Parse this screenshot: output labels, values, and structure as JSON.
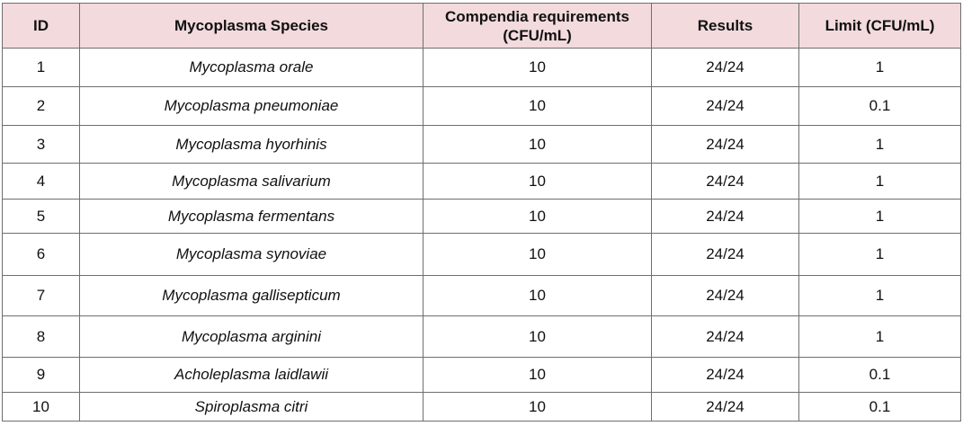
{
  "table": {
    "header": [
      "ID",
      "Mycoplasma Species",
      "Compendia requirements (CFU/mL)",
      "Results",
      "Limit (CFU/mL)"
    ],
    "rows": [
      [
        "1",
        "Mycoplasma orale",
        "10",
        "24/24",
        "1"
      ],
      [
        "2",
        "Mycoplasma pneumoniae",
        "10",
        "24/24",
        "0.1"
      ],
      [
        "3",
        "Mycoplasma hyorhinis",
        "10",
        "24/24",
        "1"
      ],
      [
        "4",
        "Mycoplasma salivarium",
        "10",
        "24/24",
        "1"
      ],
      [
        "5",
        "Mycoplasma fermentans",
        "10",
        "24/24",
        "1"
      ],
      [
        "6",
        "Mycoplasma synoviae",
        "10",
        "24/24",
        "1"
      ],
      [
        "7",
        "Mycoplasma gallisepticum",
        "10",
        "24/24",
        "1"
      ],
      [
        "8",
        "Mycoplasma arginini",
        "10",
        "24/24",
        "1"
      ],
      [
        "9",
        "Acholeplasma laidlawii",
        "10",
        "24/24",
        "0.1"
      ],
      [
        "10",
        "Spiroplasma citri",
        "10",
        "24/24",
        "0.1"
      ]
    ]
  }
}
